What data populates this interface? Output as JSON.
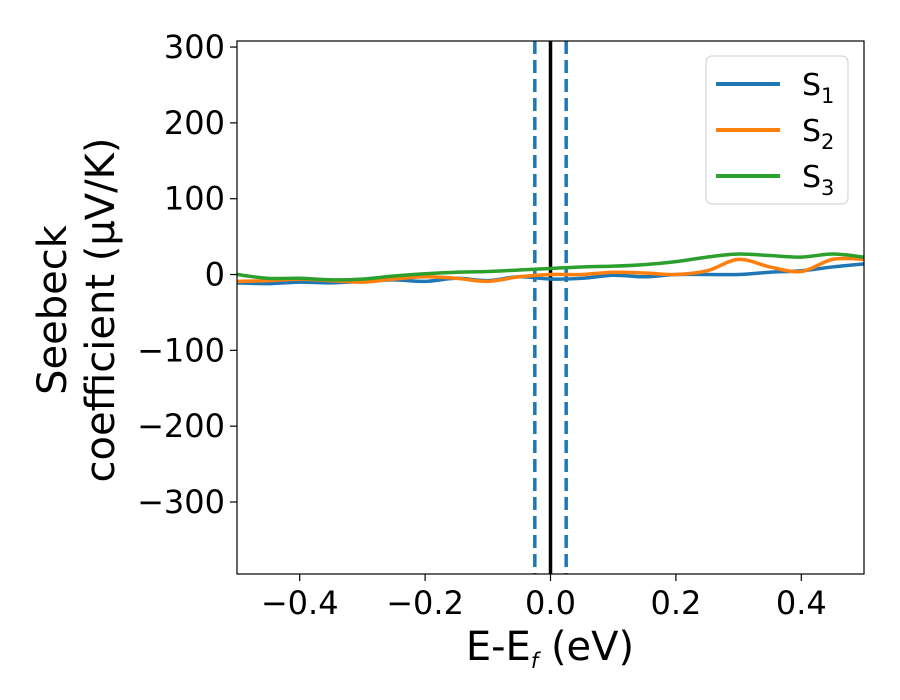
{
  "chart_data": {
    "type": "line",
    "xlabel": {
      "main": "E-E",
      "sub": "f",
      "unit": " (eV)"
    },
    "ylabel": {
      "line1": "Seebeck",
      "line2": "coefficient  (μV/K)"
    },
    "xlim": [
      -0.5,
      0.5
    ],
    "ylim": [
      -395,
      308
    ],
    "xticks": [
      -0.4,
      -0.2,
      0.0,
      0.2,
      0.4
    ],
    "xtick_labels": [
      "−0.4",
      "−0.2",
      "0.0",
      "0.2",
      "0.4"
    ],
    "yticks": [
      300,
      200,
      100,
      0,
      -100,
      -200,
      -300
    ],
    "ytick_labels": [
      "300",
      "200",
      "100",
      "0",
      "−100",
      "−200",
      "−300"
    ],
    "legend_position": "top-right",
    "vlines": [
      {
        "x": 0.0,
        "color": "#000000",
        "style": "solid"
      },
      {
        "x": -0.025,
        "color": "#1f77b4",
        "style": "dashed"
      },
      {
        "x": 0.025,
        "color": "#1f77b4",
        "style": "dashed"
      }
    ],
    "series": [
      {
        "name": "S",
        "sub": "1",
        "color": "#1f77b4",
        "x": [
          -0.5,
          -0.45,
          -0.4,
          -0.35,
          -0.3,
          -0.25,
          -0.2,
          -0.15,
          -0.1,
          -0.05,
          0.0,
          0.05,
          0.1,
          0.15,
          0.2,
          0.25,
          0.3,
          0.35,
          0.4,
          0.45,
          0.5
        ],
        "y": [
          -11,
          -12,
          -10,
          -11,
          -9,
          -7,
          -9,
          -5,
          -8,
          -3,
          -6,
          -5,
          -1,
          -3,
          0,
          0,
          0,
          3,
          5,
          10,
          14
        ]
      },
      {
        "name": "S",
        "sub": "2",
        "color": "#ff7f0e",
        "x": [
          -0.5,
          -0.45,
          -0.4,
          -0.35,
          -0.3,
          -0.25,
          -0.2,
          -0.15,
          -0.1,
          -0.05,
          0.0,
          0.05,
          0.1,
          0.15,
          0.2,
          0.25,
          0.3,
          0.35,
          0.4,
          0.45,
          0.5
        ],
        "y": [
          -9,
          -8,
          -6,
          -8,
          -10,
          -6,
          -3,
          -5,
          -9,
          -3,
          0,
          0,
          3,
          2,
          0,
          5,
          20,
          10,
          4,
          20,
          20
        ]
      },
      {
        "name": "S",
        "sub": "3",
        "color": "#2ca02c",
        "x": [
          -0.5,
          -0.45,
          -0.4,
          -0.35,
          -0.3,
          -0.25,
          -0.2,
          -0.15,
          -0.1,
          -0.05,
          0.0,
          0.05,
          0.1,
          0.15,
          0.2,
          0.25,
          0.3,
          0.35,
          0.4,
          0.45,
          0.5
        ],
        "y": [
          0,
          -5,
          -5,
          -7,
          -6,
          -2,
          1,
          3,
          4,
          6,
          8,
          10,
          11,
          13,
          17,
          23,
          27,
          25,
          23,
          27,
          23
        ]
      }
    ]
  }
}
